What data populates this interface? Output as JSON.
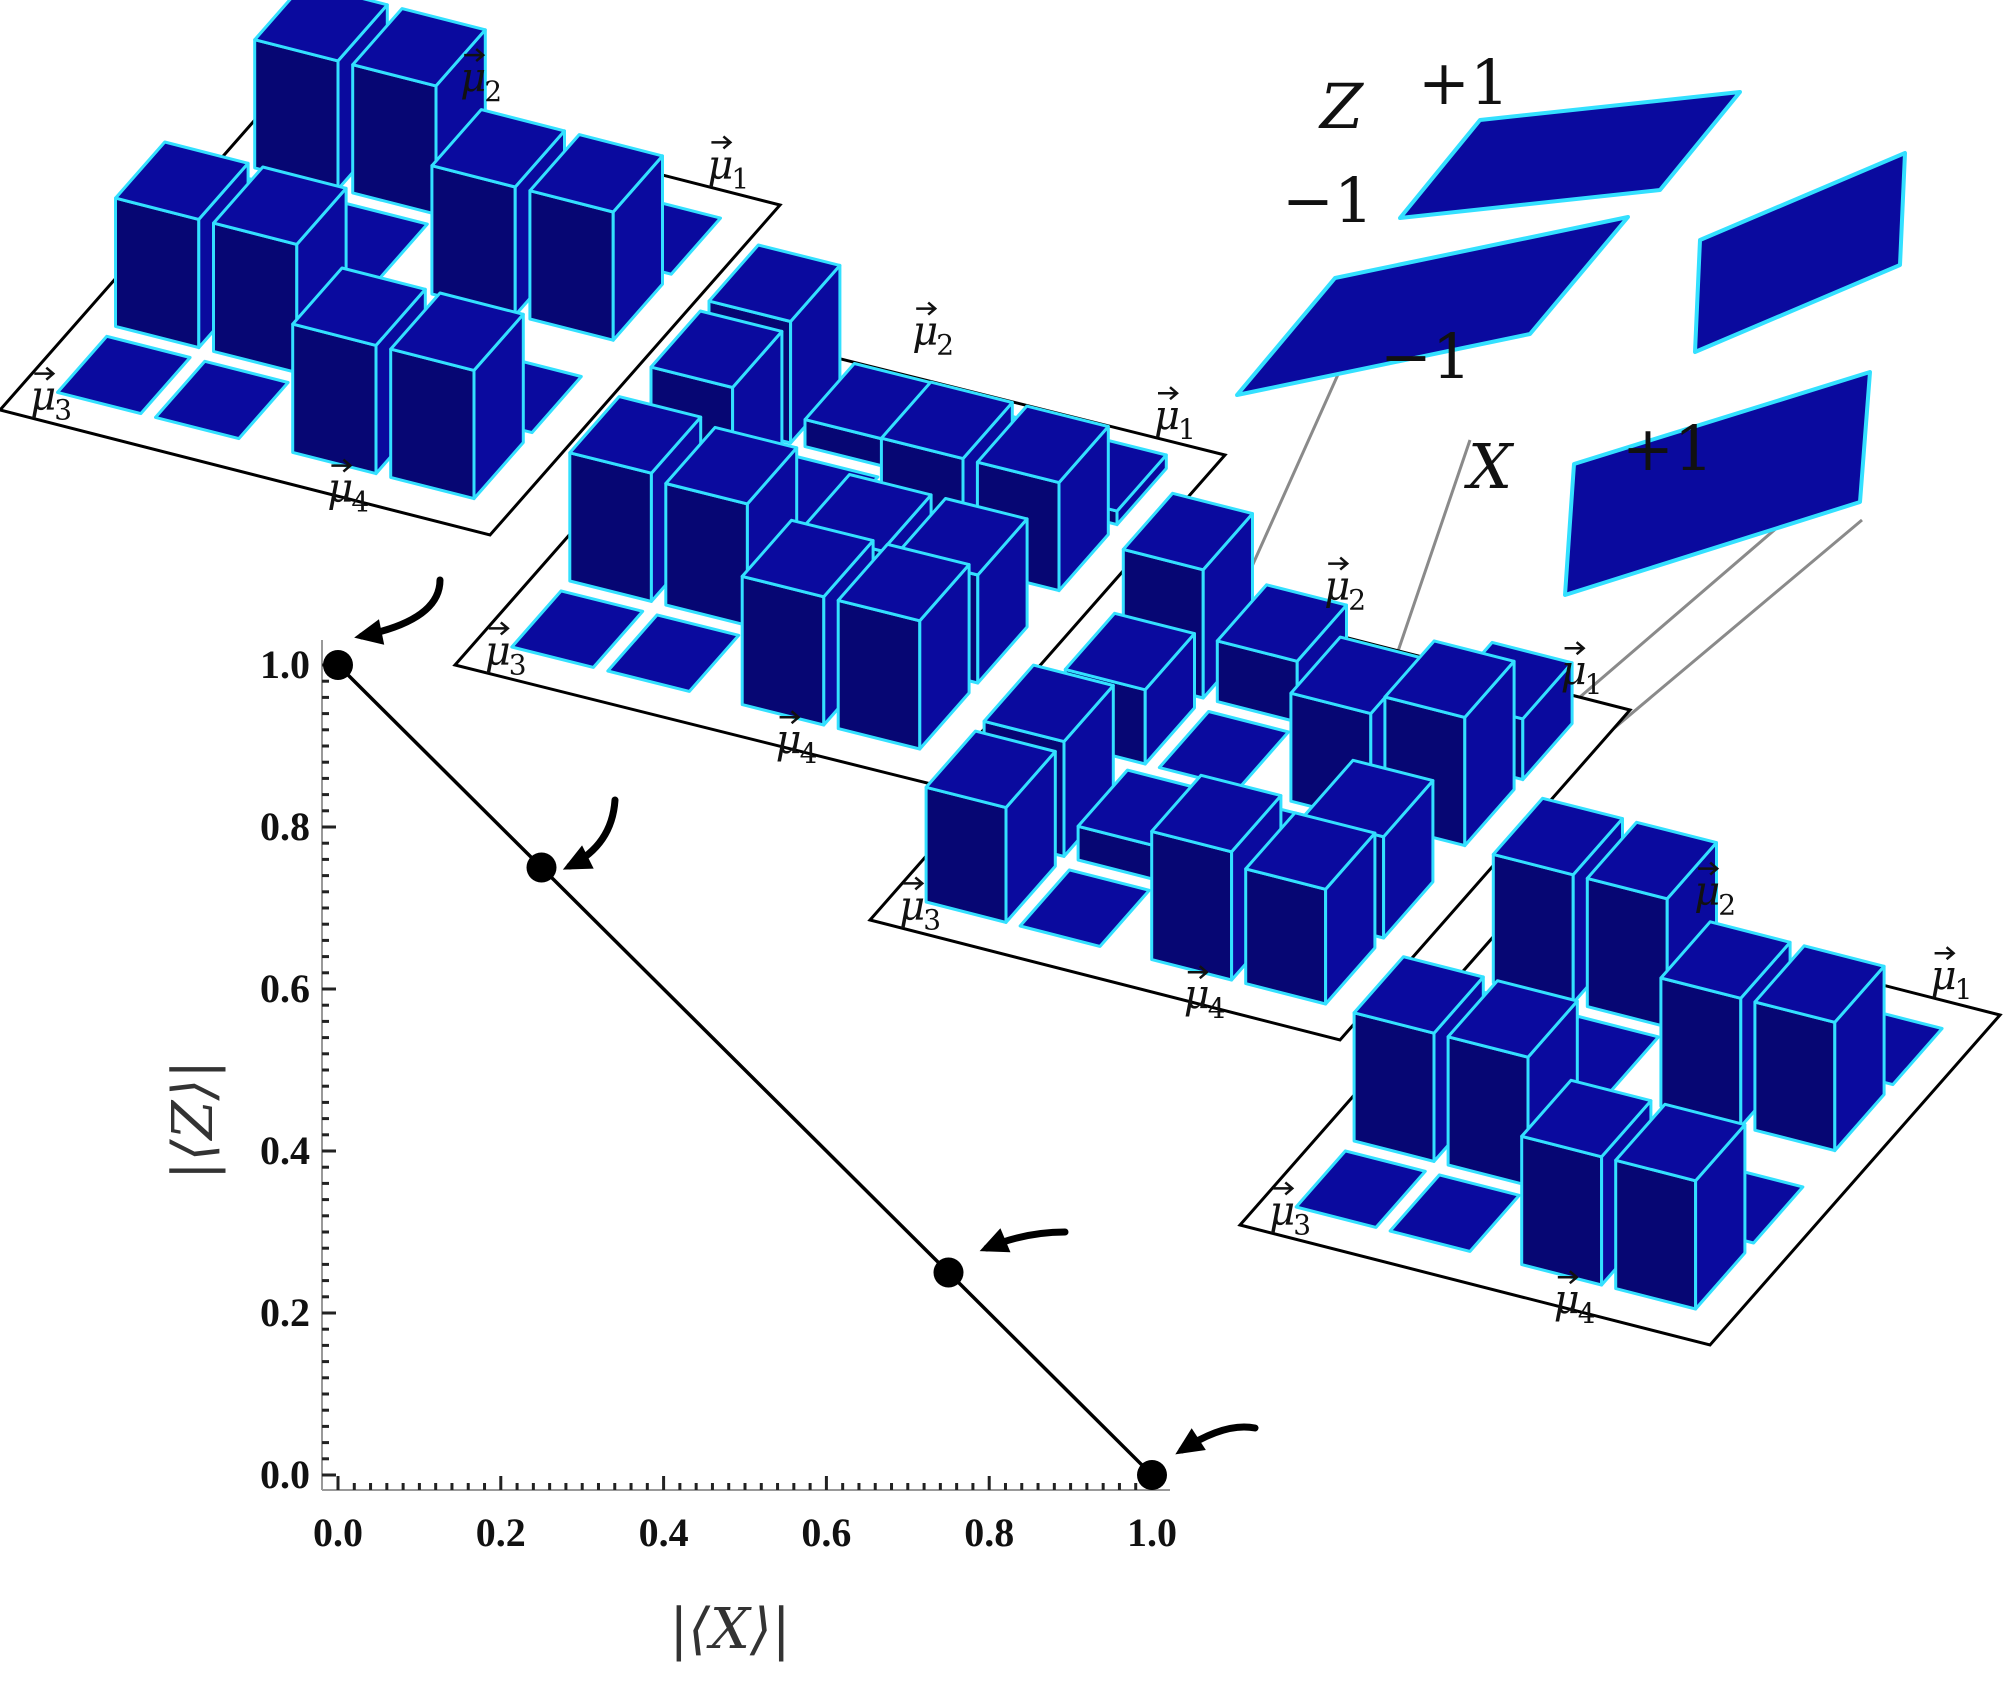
{
  "chart_data": {
    "type": "scatter",
    "title": "",
    "xlabel": "|⟨X⟩|",
    "ylabel": "|⟨Z⟩|",
    "xlim": [
      0.0,
      1.0
    ],
    "ylim": [
      0.0,
      1.0
    ],
    "x_ticks": [
      "0.0",
      "0.2",
      "0.4",
      "0.6",
      "0.8",
      "1.0"
    ],
    "y_ticks": [
      "0.0",
      "0.2",
      "0.4",
      "0.6",
      "0.8",
      "1.0"
    ],
    "points": [
      {
        "x": 0.0,
        "y": 1.0
      },
      {
        "x": 0.25,
        "y": 0.75
      },
      {
        "x": 0.75,
        "y": 0.25
      },
      {
        "x": 1.0,
        "y": 0.0
      }
    ],
    "line_connects_points": true,
    "grid": false,
    "marker_color": "#000000",
    "line_color": "#000000"
  },
  "histogram_panels": {
    "bar_face_color": "#0a0a9e",
    "bar_side_color": "#060673",
    "bar_edge_color": "#33e0ff",
    "labels": [
      {
        "main": "μ",
        "sub": "1"
      },
      {
        "main": "μ",
        "sub": "2"
      },
      {
        "main": "μ",
        "sub": "3"
      },
      {
        "main": "μ",
        "sub": "4"
      }
    ],
    "panels": [
      {
        "point_index": 0,
        "heights": {
          "mu1": [
            0.0,
            0.0,
            0.95,
            0.95
          ],
          "mu2": [
            0.95,
            0.95,
            0.0,
            0.0
          ],
          "mu3": [
            0.95,
            0.95,
            0.0,
            0.0
          ],
          "mu4": [
            0.0,
            0.0,
            0.95,
            0.95
          ]
        }
      },
      {
        "point_index": 1,
        "heights": {
          "mu1": [
            0.1,
            0.1,
            0.8,
            0.8
          ],
          "mu2": [
            0.9,
            0.2,
            0.9,
            0.0
          ],
          "mu3": [
            0.95,
            0.9,
            0.0,
            0.0
          ],
          "mu4": [
            0.8,
            0.8,
            0.95,
            0.95
          ]
        }
      },
      {
        "point_index": 2,
        "heights": {
          "mu1": [
            0.0,
            0.45,
            0.8,
            0.95
          ],
          "mu2": [
            0.95,
            0.45,
            0.55,
            0.0
          ],
          "mu3": [
            0.85,
            0.25,
            0.85,
            0.0
          ],
          "mu4": [
            0.25,
            0.75,
            0.95,
            0.85
          ]
        }
      },
      {
        "point_index": 3,
        "heights": {
          "mu1": [
            0.0,
            0.0,
            0.95,
            0.95
          ],
          "mu2": [
            0.95,
            0.95,
            0.0,
            0.0
          ],
          "mu3": [
            0.95,
            0.95,
            0.0,
            0.0
          ],
          "mu4": [
            0.0,
            0.0,
            0.95,
            0.95
          ]
        }
      }
    ]
  },
  "grid_key": {
    "z_label": "Z",
    "x_label": "X",
    "z_plus": "+1",
    "z_minus": "−1",
    "x_minus": "−1",
    "x_plus": "+1"
  }
}
